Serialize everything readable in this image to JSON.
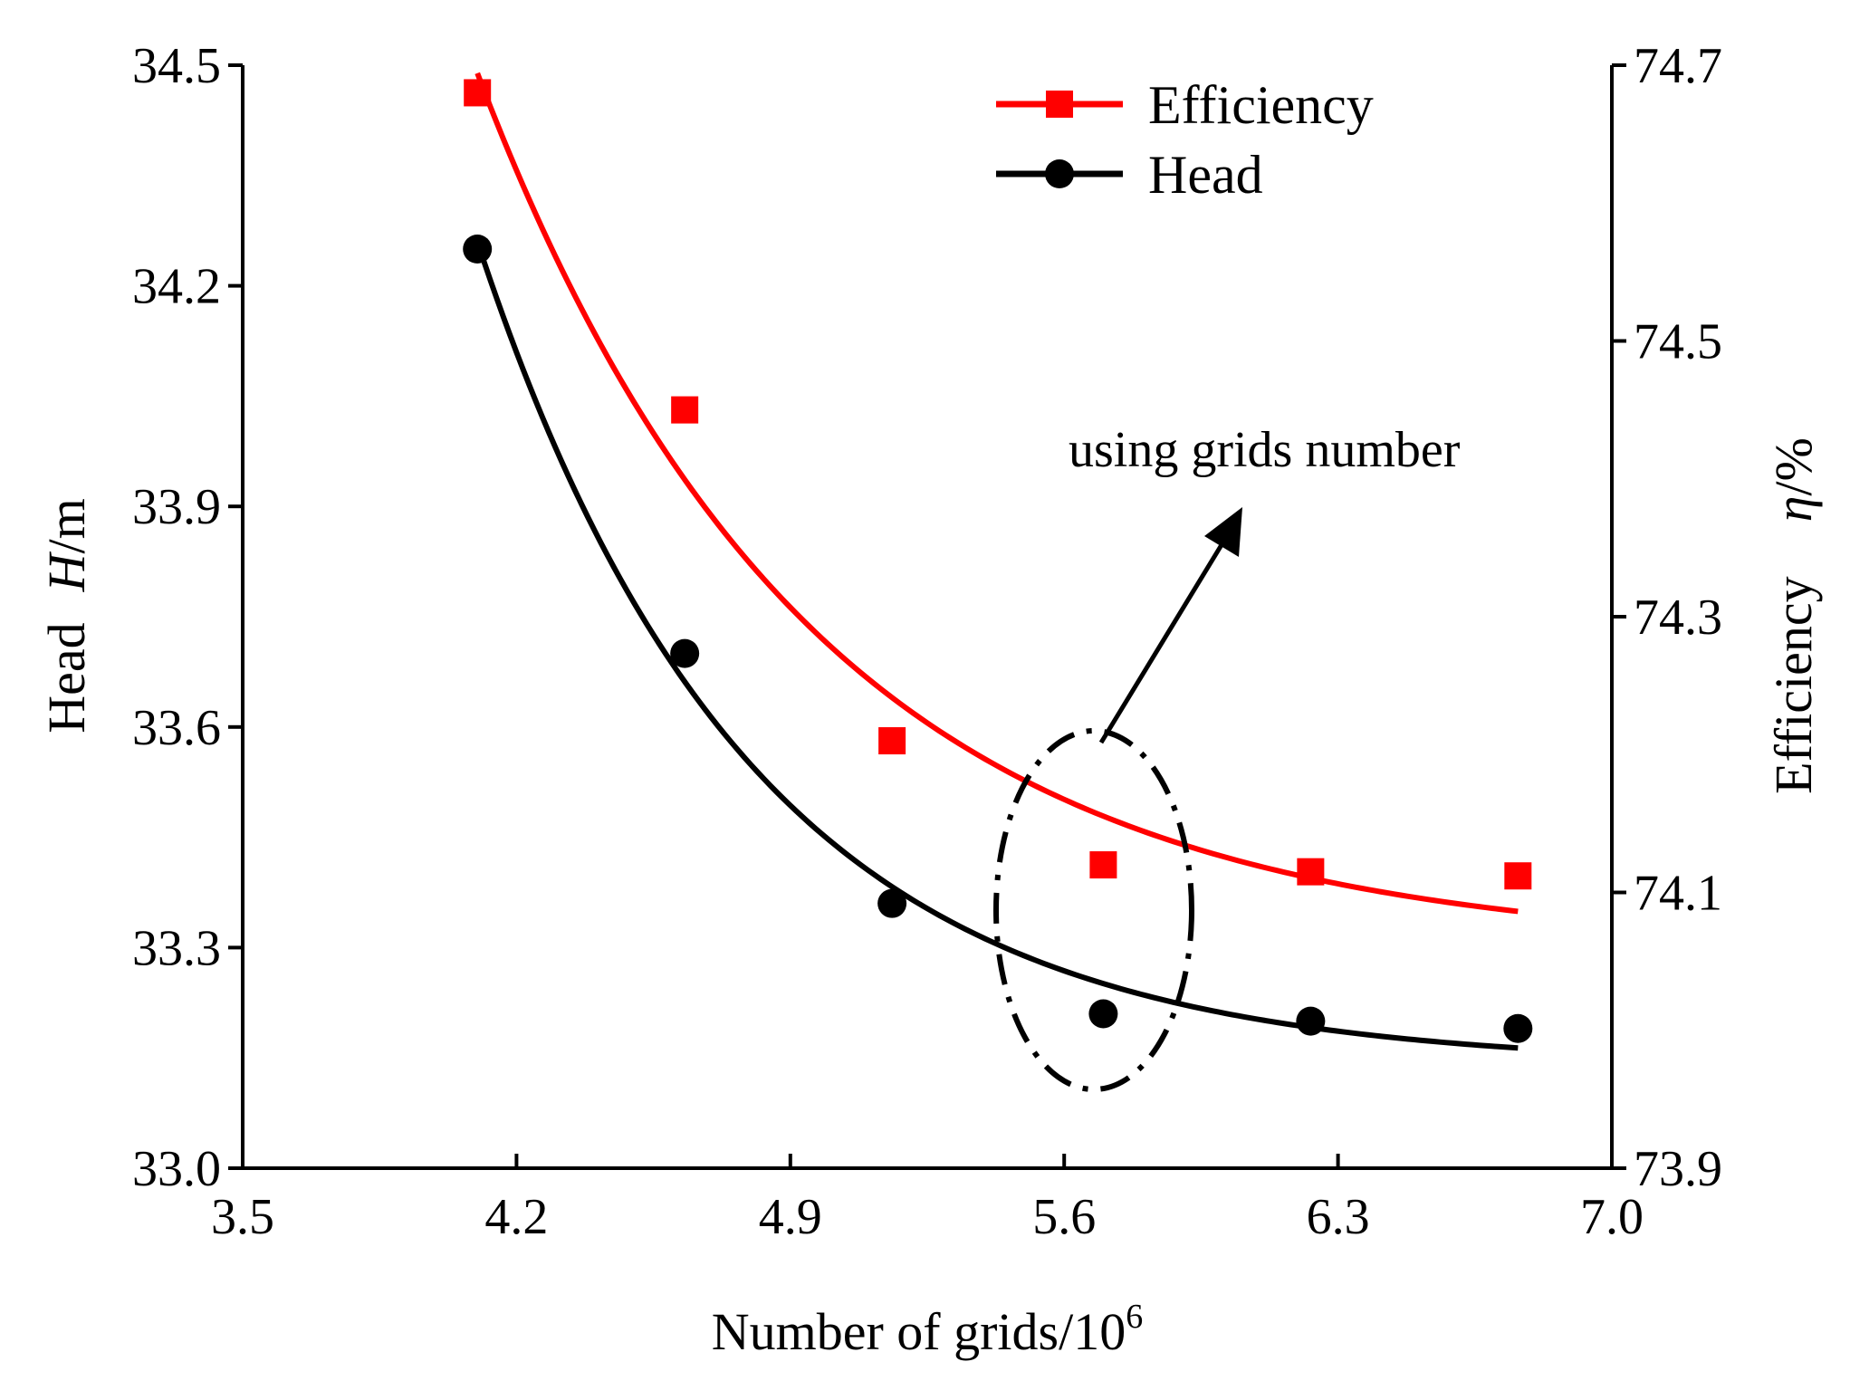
{
  "chart_data": {
    "type": "line",
    "title": "",
    "xlabel": "Number of grids/10",
    "xlabel_exponent": "6",
    "ylabel_left": {
      "prefix": "Head",
      "symbol": "H",
      "unit": "/m"
    },
    "ylabel_right": {
      "prefix": "Efficiency",
      "symbol": "η",
      "unit": "/%"
    },
    "xlim": [
      3.5,
      7.0
    ],
    "ylim_left": [
      33.0,
      34.5
    ],
    "ylim_right": [
      73.9,
      74.7
    ],
    "x_ticks": [
      "3.5",
      "4.2",
      "4.9",
      "5.6",
      "6.3",
      "7.0"
    ],
    "y_left_ticks": [
      "33.0",
      "33.3",
      "33.6",
      "33.9",
      "34.2",
      "34.5"
    ],
    "y_right_ticks": [
      "73.9",
      "74.1",
      "74.3",
      "74.5",
      "74.7"
    ],
    "x": [
      4.1,
      4.63,
      5.16,
      5.7,
      6.23,
      6.76
    ],
    "series": [
      {
        "name": "Efficiency",
        "axis": "right",
        "color": "#ff0000",
        "marker": "square",
        "values": [
          74.68,
          74.45,
          74.21,
          74.12,
          74.115,
          74.112
        ]
      },
      {
        "name": "Head",
        "axis": "left",
        "color": "#000000",
        "marker": "circle",
        "values": [
          34.25,
          33.7,
          33.36,
          33.21,
          33.2,
          33.19
        ]
      }
    ],
    "legend_position": "top-right",
    "annotation": {
      "text": "using grids number",
      "highlight_x": 5.7
    }
  }
}
